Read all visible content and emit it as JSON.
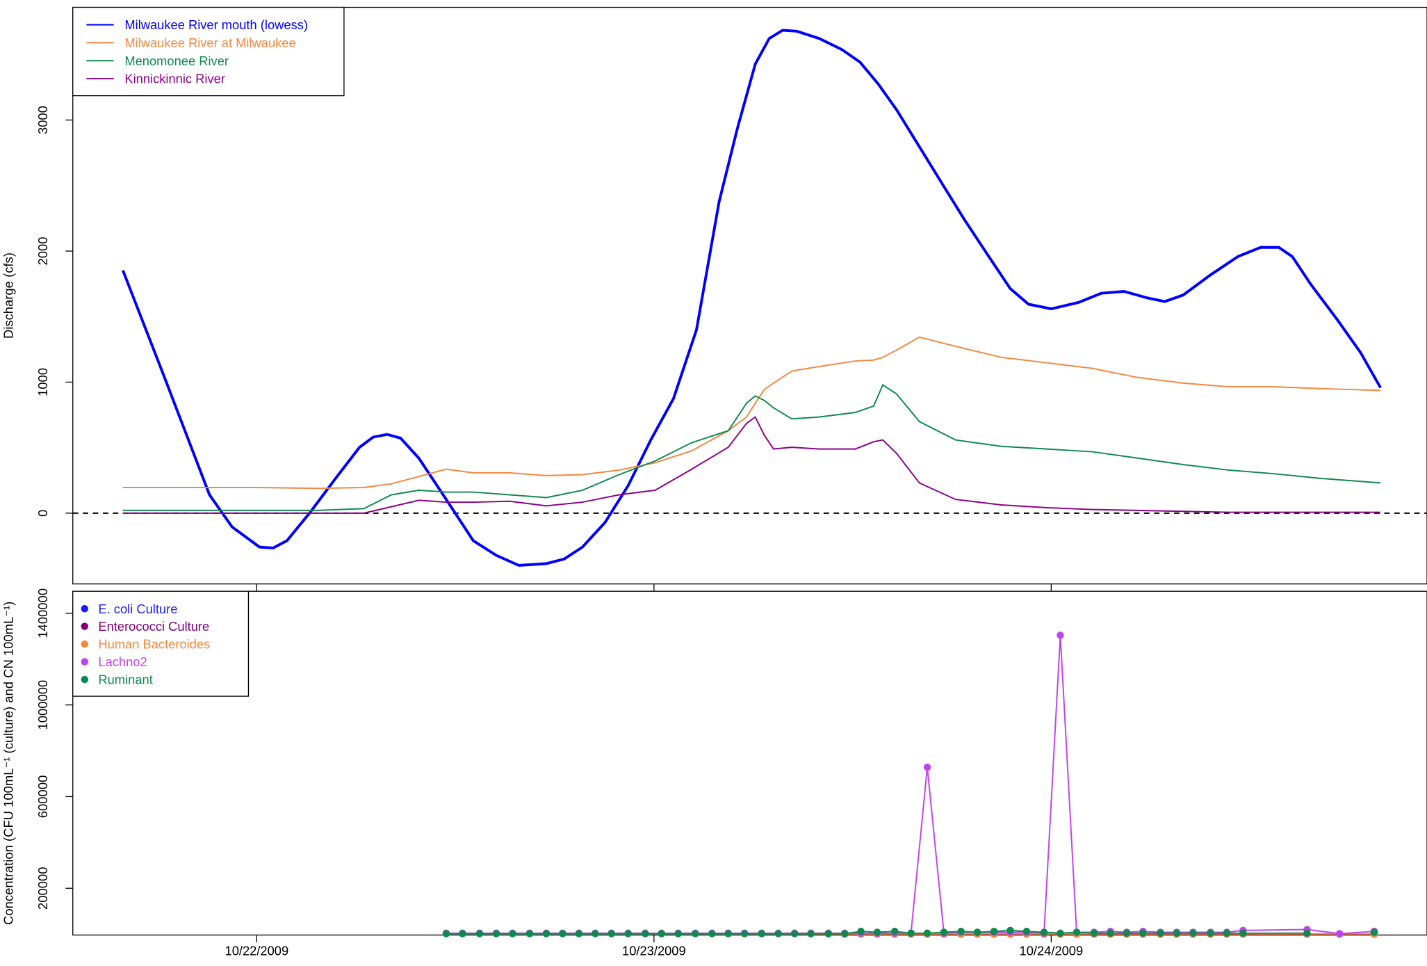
{
  "chart_data": [
    {
      "type": "line",
      "ylabel": "Discharge (cfs)",
      "xlim": [
        21.537,
        24.946
      ],
      "ylim": [
        -540,
        3860
      ],
      "yticks": [
        0,
        1000,
        2000,
        3000
      ],
      "reference_line": 0,
      "legend": "top-left",
      "series": [
        {
          "name": "Milwaukee River mouth (lowess)",
          "color": "#0000ff",
          "width": 3,
          "x": [
            21.663,
            21.766,
            21.881,
            21.938,
            22.007,
            22.041,
            22.076,
            22.133,
            22.202,
            22.259,
            22.293,
            22.328,
            22.362,
            22.408,
            22.477,
            22.545,
            22.603,
            22.66,
            22.729,
            22.774,
            22.82,
            22.877,
            22.935,
            22.992,
            23.049,
            23.107,
            23.164,
            23.21,
            23.255,
            23.29,
            23.324,
            23.359,
            23.416,
            23.473,
            23.519,
            23.565,
            23.611,
            23.668,
            23.725,
            23.782,
            23.84,
            23.897,
            23.943,
            24.0,
            24.069,
            24.126,
            24.183,
            24.241,
            24.286,
            24.332,
            24.401,
            24.47,
            24.527,
            24.573,
            24.607,
            24.653,
            24.722,
            24.779,
            24.829
          ],
          "values": [
            1853,
            1049,
            140,
            -105,
            -259,
            -266,
            -210,
            0,
            280,
            503,
            580,
            601,
            573,
            420,
            105,
            -210,
            -322,
            -399,
            -385,
            -350,
            -259,
            -70,
            210,
            559,
            874,
            1399,
            2378,
            2937,
            3427,
            3622,
            3685,
            3678,
            3622,
            3538,
            3441,
            3273,
            3077,
            2797,
            2517,
            2238,
            1972,
            1713,
            1594,
            1559,
            1608,
            1678,
            1692,
            1643,
            1615,
            1664,
            1818,
            1958,
            2028,
            2028,
            1958,
            1748,
            1469,
            1224,
            958
          ]
        },
        {
          "name": "Milwaukee River at Milwaukee",
          "color": "#f4873f",
          "width": 1.5,
          "x": [
            21.663,
            21.812,
            21.995,
            22.156,
            22.27,
            22.339,
            22.408,
            22.477,
            22.545,
            22.637,
            22.729,
            22.82,
            22.912,
            23.003,
            23.095,
            23.187,
            23.233,
            23.255,
            23.278,
            23.301,
            23.347,
            23.416,
            23.507,
            23.553,
            23.576,
            23.611,
            23.668,
            23.759,
            23.874,
            23.989,
            24.103,
            24.218,
            24.332,
            24.447,
            24.561,
            24.676,
            24.829
          ],
          "values": [
            196,
            196,
            196,
            189,
            196,
            224,
            280,
            336,
            308,
            308,
            287,
            294,
            329,
            385,
            476,
            629,
            734,
            839,
            944,
            993,
            1084,
            1119,
            1161,
            1168,
            1189,
            1245,
            1343,
            1273,
            1189,
            1147,
            1105,
            1035,
            993,
            965,
            965,
            951,
            937
          ]
        },
        {
          "name": "Menomonee River",
          "color": "#0f8a4f",
          "width": 1.5,
          "x": [
            21.663,
            21.812,
            21.995,
            22.156,
            22.27,
            22.339,
            22.408,
            22.477,
            22.545,
            22.637,
            22.729,
            22.82,
            22.912,
            23.003,
            23.095,
            23.187,
            23.233,
            23.255,
            23.278,
            23.301,
            23.347,
            23.416,
            23.507,
            23.553,
            23.576,
            23.611,
            23.668,
            23.759,
            23.874,
            23.989,
            24.103,
            24.218,
            24.332,
            24.447,
            24.561,
            24.676,
            24.829
          ],
          "values": [
            21,
            21,
            21,
            21,
            35,
            140,
            175,
            161,
            161,
            140,
            119,
            175,
            294,
            399,
            538,
            629,
            839,
            895,
            860,
            804,
            720,
            734,
            769,
            818,
            979,
            909,
            699,
            559,
            510,
            490,
            469,
            420,
            371,
            329,
            301,
            266,
            231
          ]
        },
        {
          "name": "Kinnickinnic River",
          "color": "#8b008b",
          "width": 1.5,
          "x": [
            21.663,
            21.812,
            21.995,
            22.156,
            22.27,
            22.339,
            22.408,
            22.477,
            22.545,
            22.637,
            22.729,
            22.82,
            22.912,
            23.003,
            23.095,
            23.187,
            23.233,
            23.255,
            23.278,
            23.301,
            23.347,
            23.416,
            23.507,
            23.553,
            23.576,
            23.611,
            23.668,
            23.759,
            23.874,
            23.989,
            24.103,
            24.218,
            24.332,
            24.447,
            24.561,
            24.676,
            24.829
          ],
          "values": [
            0,
            0,
            0,
            0,
            0,
            49,
            98,
            84,
            84,
            91,
            56,
            84,
            140,
            175,
            336,
            503,
            685,
            734,
            594,
            490,
            503,
            490,
            490,
            545,
            559,
            455,
            231,
            105,
            63,
            42,
            28,
            21,
            14,
            7,
            7,
            7,
            7
          ]
        }
      ]
    },
    {
      "type": "line",
      "markers": true,
      "ylabel": "Concentration (CFU 100mL⁻¹ (culture) and CN 100mL⁻¹)",
      "xlim": [
        21.537,
        24.946
      ],
      "ylim": [
        -4000,
        1496000
      ],
      "xticks": [
        {
          "value": 22,
          "label": "10/22/2009"
        },
        {
          "value": 23,
          "label": "10/23/2009"
        },
        {
          "value": 24,
          "label": "10/24/2009"
        }
      ],
      "yticks": [
        200000,
        600000,
        1000000,
        1400000
      ],
      "legend": "top-left",
      "x": [
        22.477,
        22.518,
        22.561,
        22.603,
        22.644,
        22.687,
        22.729,
        22.77,
        22.811,
        22.852,
        22.893,
        22.935,
        22.978,
        23.019,
        23.061,
        23.104,
        23.146,
        23.187,
        23.228,
        23.271,
        23.313,
        23.354,
        23.395,
        23.439,
        23.48,
        23.521,
        23.562,
        23.606,
        23.647,
        23.688,
        23.73,
        23.773,
        23.814,
        23.856,
        23.897,
        23.938,
        23.982,
        24.023,
        24.064,
        24.108,
        24.149,
        24.19,
        24.231,
        24.275,
        24.316,
        24.357,
        24.401,
        24.442,
        24.483,
        24.644,
        24.726,
        24.813
      ],
      "series": [
        {
          "name": "E. coli Culture",
          "color": "#1a1aff",
          "values": [
            null,
            null,
            null,
            null,
            null,
            null,
            null,
            null,
            null,
            null,
            null,
            null,
            null,
            null,
            null,
            null,
            null,
            null,
            null,
            null,
            null,
            null,
            null,
            null,
            1000,
            1000,
            1000,
            1000,
            1000,
            1000,
            1000,
            1000,
            1000,
            1000,
            1000,
            1000,
            1000,
            1000,
            1000,
            1000,
            1000,
            1000,
            1000,
            1000,
            1000,
            1000,
            1000,
            1000,
            1000,
            1000,
            1000,
            1000
          ]
        },
        {
          "name": "Enterococci Culture",
          "color": "#800080",
          "values": [
            null,
            null,
            null,
            null,
            null,
            null,
            null,
            null,
            null,
            null,
            null,
            null,
            null,
            null,
            null,
            null,
            null,
            null,
            null,
            null,
            null,
            null,
            null,
            null,
            500,
            500,
            500,
            500,
            500,
            500,
            500,
            500,
            500,
            500,
            500,
            500,
            500,
            500,
            500,
            500,
            500,
            500,
            500,
            500,
            500,
            500,
            500,
            500,
            500,
            500,
            500,
            500
          ]
        },
        {
          "name": "Human Bacteroides",
          "color": "#f4873f",
          "values": [
            null,
            null,
            null,
            null,
            null,
            null,
            null,
            null,
            null,
            null,
            null,
            null,
            null,
            null,
            null,
            null,
            null,
            null,
            null,
            null,
            null,
            null,
            1000,
            1000,
            1000,
            1000,
            1000,
            1000,
            1000,
            1000,
            1000,
            1000,
            1000,
            1000,
            1000,
            1000,
            1000,
            1000,
            1000,
            1000,
            1000,
            1000,
            1000,
            1000,
            1000,
            1000,
            1000,
            1000,
            1000,
            1000,
            1000,
            1000
          ]
        },
        {
          "name": "Lachno2",
          "color": "#c043f0",
          "values": [
            4000,
            4000,
            4000,
            4000,
            4000,
            4000,
            4000,
            4000,
            4000,
            4000,
            4000,
            4000,
            4000,
            4000,
            4000,
            4000,
            4000,
            4000,
            4000,
            4000,
            4000,
            4000,
            4000,
            4000,
            4000,
            4000,
            4000,
            4000,
            4000,
            728000,
            4000,
            8000,
            8000,
            8000,
            8000,
            8000,
            4000,
            1304000,
            8000,
            8000,
            12000,
            8000,
            12000,
            8000,
            8000,
            8000,
            8000,
            8000,
            16000,
            20000,
            2000,
            12000
          ]
        },
        {
          "name": "Ruminant",
          "color": "#0f8a4f",
          "values": [
            2000,
            2000,
            2000,
            2000,
            2000,
            2000,
            2000,
            2000,
            2000,
            2000,
            2000,
            2000,
            2000,
            2000,
            2000,
            2000,
            2000,
            2000,
            2000,
            2000,
            2000,
            2000,
            2000,
            2000,
            2000,
            12000,
            8000,
            12000,
            4000,
            4000,
            8000,
            12000,
            8000,
            12000,
            16000,
            12000,
            8000,
            4000,
            8000,
            4000,
            4000,
            4000,
            4000,
            4000,
            4000,
            4000,
            4000,
            4000,
            4000,
            4000,
            null,
            8000
          ]
        }
      ]
    }
  ]
}
